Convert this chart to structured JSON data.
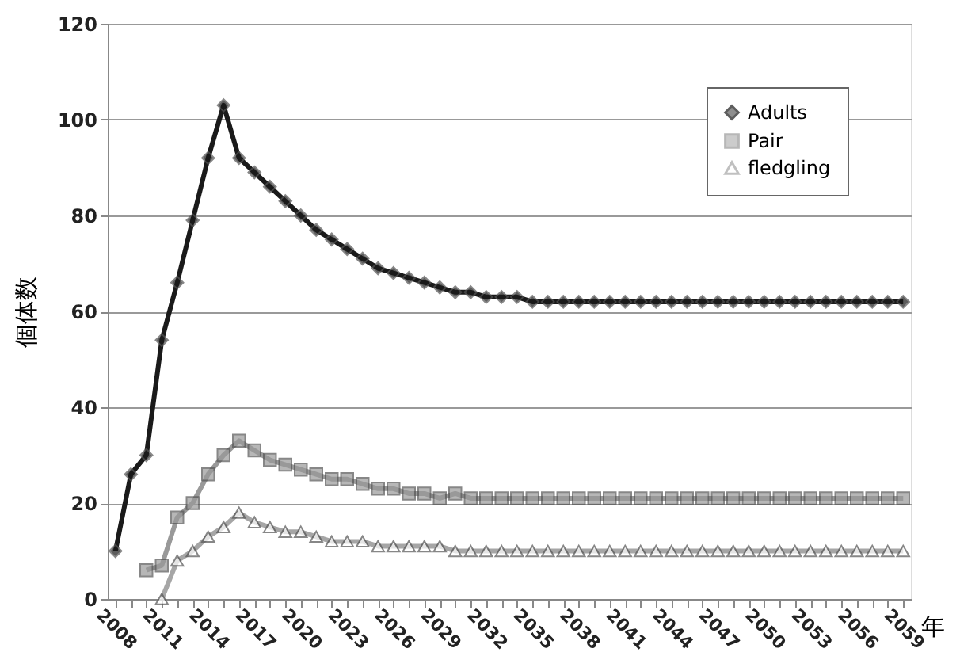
{
  "chart_data": {
    "type": "line",
    "ylabel": "個体数",
    "xlabel": "年",
    "categories": [
      "2008",
      null,
      null,
      "2011",
      null,
      null,
      "2014",
      null,
      null,
      "2017",
      null,
      null,
      "2020",
      null,
      null,
      "2023",
      null,
      null,
      "2026",
      null,
      null,
      "2029",
      null,
      null,
      "2032",
      null,
      null,
      "2035",
      null,
      null,
      "2038",
      null,
      null,
      "2041",
      null,
      null,
      "2044",
      null,
      null,
      "2047",
      null,
      null,
      "2050",
      null,
      null,
      "2053",
      null,
      null,
      "2056",
      null,
      null,
      "2059"
    ],
    "series": [
      {
        "name": "Adults",
        "color": "#1a1a1a",
        "marker": "diamond",
        "values": [
          10,
          26,
          30,
          54,
          66,
          79,
          92,
          103,
          92,
          89,
          86,
          83,
          80,
          77,
          75,
          73,
          71,
          69,
          68,
          67,
          66,
          65,
          64,
          64,
          63,
          63,
          63,
          62,
          62,
          62,
          62,
          62,
          62,
          62,
          62,
          62,
          62,
          62,
          62,
          62,
          62,
          62,
          62,
          62,
          62,
          62,
          62,
          62,
          62,
          62,
          62,
          62
        ]
      },
      {
        "name": "Pair",
        "color": "#999999",
        "marker": "square",
        "values": [
          null,
          null,
          6,
          7,
          17,
          20,
          26,
          30,
          33,
          31,
          29,
          28,
          27,
          26,
          25,
          25,
          24,
          23,
          23,
          22,
          22,
          21,
          22,
          21,
          21,
          21,
          21,
          21,
          21,
          21,
          21,
          21,
          21,
          21,
          21,
          21,
          21,
          21,
          21,
          21,
          21,
          21,
          21,
          21,
          21,
          21,
          21,
          21,
          21,
          21,
          21,
          21
        ]
      },
      {
        "name": "fledgling",
        "color": "#a6a6a6",
        "marker": "triangle",
        "values": [
          null,
          null,
          null,
          0,
          8,
          10,
          13,
          15,
          18,
          16,
          15,
          14,
          14,
          13,
          12,
          12,
          12,
          11,
          11,
          11,
          11,
          11,
          10,
          10,
          10,
          10,
          10,
          10,
          10,
          10,
          10,
          10,
          10,
          10,
          10,
          10,
          10,
          10,
          10,
          10,
          10,
          10,
          10,
          10,
          10,
          10,
          10,
          10,
          10,
          10,
          10,
          10
        ]
      }
    ],
    "ylim": [
      0,
      120
    ],
    "yticks": [
      0,
      20,
      40,
      60,
      80,
      100,
      120
    ],
    "grid": "y",
    "legend": "top right"
  }
}
